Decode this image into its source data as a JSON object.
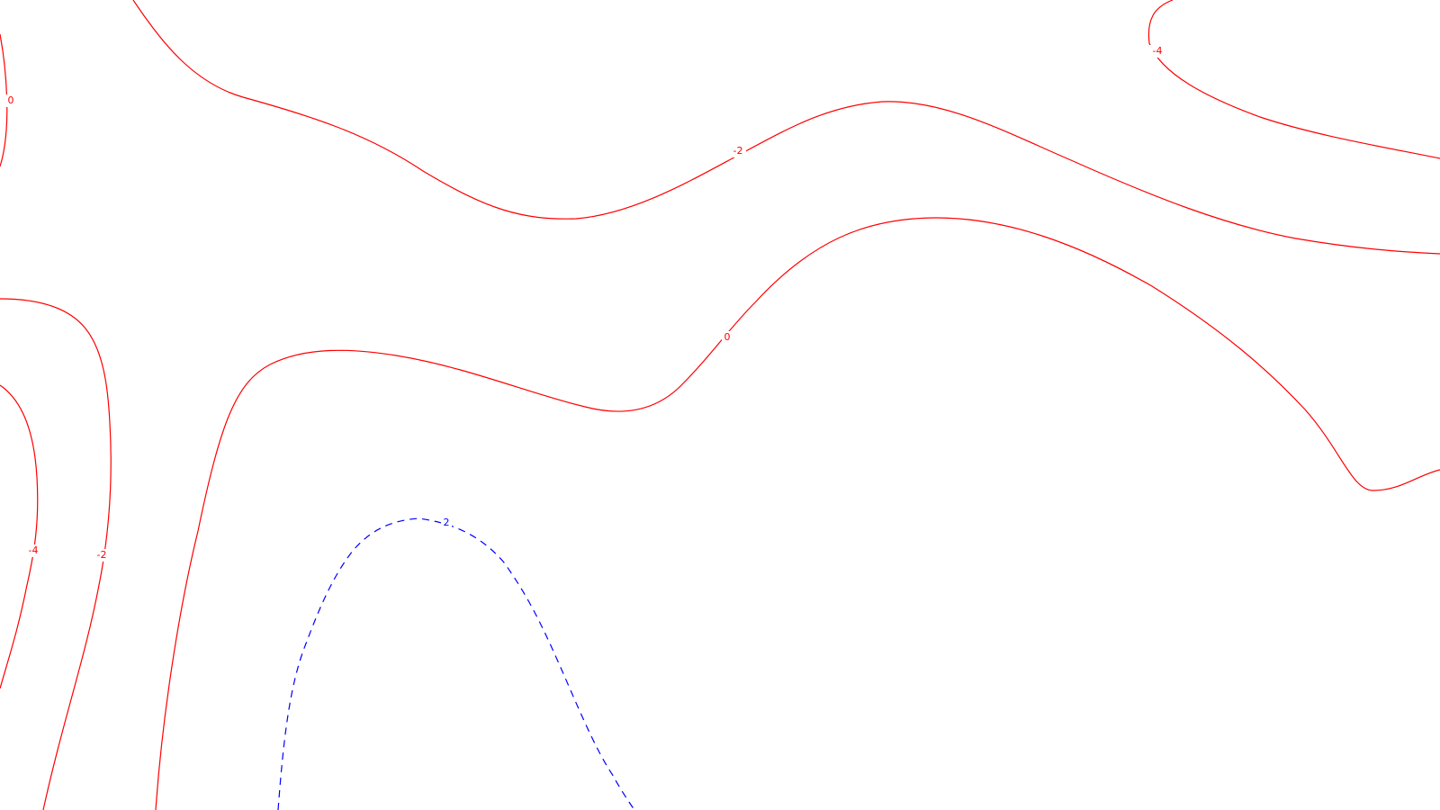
{
  "map": {
    "colors": {
      "background": "#ffffff",
      "positive_or_zero": "#ff0000",
      "negative": "#0000ff"
    },
    "contours": [
      {
        "id": "contour-left-edge-0",
        "value": 0,
        "color": "#ff0000",
        "dashed": false,
        "label": "0"
      },
      {
        "id": "contour-upper-minus-2",
        "value": -2,
        "color": "#ff0000",
        "dashed": false,
        "label": "-2"
      },
      {
        "id": "contour-top-right-minus-4",
        "value": -4,
        "color": "#ff0000",
        "dashed": false,
        "label": "-4"
      },
      {
        "id": "contour-middle-0",
        "value": 0,
        "color": "#ff0000",
        "dashed": false,
        "label": "0"
      },
      {
        "id": "contour-left-minus-2",
        "value": -2,
        "color": "#ff0000",
        "dashed": false,
        "label": "-2"
      },
      {
        "id": "contour-left-minus-4",
        "value": -4,
        "color": "#ff0000",
        "dashed": false,
        "label": "-4"
      },
      {
        "id": "contour-dashed-2",
        "value": 2,
        "color": "#0000ff",
        "dashed": true,
        "label": "2"
      }
    ]
  }
}
